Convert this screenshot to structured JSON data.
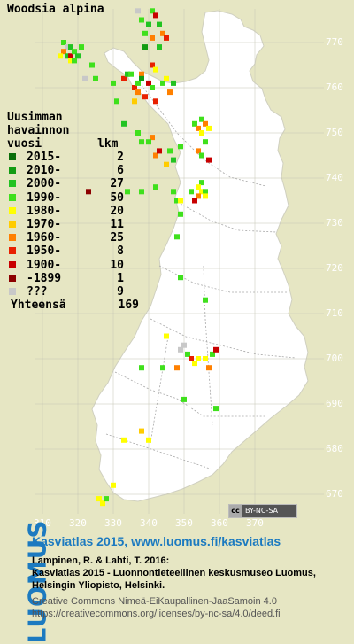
{
  "title": "Woodsia alpina",
  "legend": {
    "heading": [
      "Uusimman",
      "havainnon",
      "vuosi"
    ],
    "count_heading": "lkm",
    "rows": [
      {
        "label": "2015-",
        "count": "2",
        "color": "#0a6e0a"
      },
      {
        "label": "2010-",
        "count": "6",
        "color": "#139c13"
      },
      {
        "label": "2000-",
        "count": "27",
        "color": "#22c322"
      },
      {
        "label": "1990-",
        "count": "50",
        "color": "#3fe01c"
      },
      {
        "label": "1980-",
        "count": "20",
        "color": "#ffff00"
      },
      {
        "label": "1970-",
        "count": "11",
        "color": "#ffcc00"
      },
      {
        "label": "1960-",
        "count": "25",
        "color": "#ff8000"
      },
      {
        "label": "1950-",
        "count": "8",
        "color": "#e82000"
      },
      {
        "label": "1900-",
        "count": "10",
        "color": "#c80000"
      },
      {
        "label": "-1899",
        "count": "1",
        "color": "#8c0000"
      },
      {
        "label": "???",
        "count": "9",
        "color": "#c8c8c8"
      }
    ],
    "total_label": "Yhteensä",
    "total_count": "169"
  },
  "grid": {
    "y_labels": [
      "770",
      "760",
      "750",
      "740",
      "730",
      "720",
      "710",
      "700",
      "690",
      "680",
      "670"
    ],
    "x_labels": [
      "310",
      "320",
      "330",
      "340",
      "350",
      "360",
      "370"
    ]
  },
  "license_badge": "BY-NC-SA",
  "footer": {
    "logo": "LUOMUS",
    "title_line": "Kasviatlas 2015, www.luomus.fi/kasviatlas",
    "citation_1": "Lampinen, R. & Lahti, T. 2016:",
    "citation_2": "Kasviatlas 2015 - Luonnontieteellinen keskusmuseo Luomus,",
    "citation_3": "Helsingin Yliopisto, Helsinki.",
    "license_1": "Creative Commons Nimeä-EiKaupallinen-JaaSamoin 4.0",
    "license_2": "https://creativecommons.org/licenses/by-nc-sa/4.0/deed.fi"
  },
  "observations": [
    {
      "e": 337,
      "n": 777,
      "p": 10
    },
    {
      "e": 341,
      "n": 777,
      "p": 3
    },
    {
      "e": 342,
      "n": 776,
      "p": 8
    },
    {
      "e": 338,
      "n": 775,
      "p": 3
    },
    {
      "e": 340,
      "n": 774,
      "p": 2
    },
    {
      "e": 343,
      "n": 774,
      "p": 2
    },
    {
      "e": 339,
      "n": 772,
      "p": 3
    },
    {
      "e": 341,
      "n": 771,
      "p": 6
    },
    {
      "e": 344,
      "n": 772,
      "p": 6
    },
    {
      "e": 345,
      "n": 771,
      "p": 7
    },
    {
      "e": 339,
      "n": 769,
      "p": 1
    },
    {
      "e": 343,
      "n": 769,
      "p": 2
    },
    {
      "e": 341,
      "n": 765,
      "p": 7
    },
    {
      "e": 340,
      "n": 761,
      "p": 8
    },
    {
      "e": 338,
      "n": 763,
      "p": 6
    },
    {
      "e": 339,
      "n": 758,
      "p": 7
    },
    {
      "e": 342,
      "n": 764,
      "p": 4
    },
    {
      "e": 316,
      "n": 770,
      "p": 3
    },
    {
      "e": 317,
      "n": 769,
      "p": 10
    },
    {
      "e": 318,
      "n": 769,
      "p": 2
    },
    {
      "e": 316,
      "n": 768,
      "p": 6
    },
    {
      "e": 317,
      "n": 767,
      "p": 2
    },
    {
      "e": 318,
      "n": 767,
      "p": 8
    },
    {
      "e": 319,
      "n": 768,
      "p": 3
    },
    {
      "e": 320,
      "n": 767,
      "p": 2
    },
    {
      "e": 318,
      "n": 766,
      "p": 4
    },
    {
      "e": 319,
      "n": 766,
      "p": 3
    },
    {
      "e": 321,
      "n": 769,
      "p": 3
    },
    {
      "e": 315,
      "n": 767,
      "p": 4
    },
    {
      "e": 322,
      "n": 762,
      "p": 10
    },
    {
      "e": 324,
      "n": 765,
      "p": 3
    },
    {
      "e": 325,
      "n": 762,
      "p": 3
    },
    {
      "e": 330,
      "n": 761,
      "p": 3
    },
    {
      "e": 333,
      "n": 762,
      "p": 7
    },
    {
      "e": 334,
      "n": 763,
      "p": 2
    },
    {
      "e": 335,
      "n": 763,
      "p": 3
    },
    {
      "e": 336,
      "n": 760,
      "p": 7
    },
    {
      "e": 337,
      "n": 761,
      "p": 3
    },
    {
      "e": 338,
      "n": 762,
      "p": 1
    },
    {
      "e": 337,
      "n": 759,
      "p": 6
    },
    {
      "e": 341,
      "n": 760,
      "p": 3
    },
    {
      "e": 344,
      "n": 761,
      "p": 3
    },
    {
      "e": 345,
      "n": 762,
      "p": 4
    },
    {
      "e": 347,
      "n": 761,
      "p": 2
    },
    {
      "e": 346,
      "n": 759,
      "p": 6
    },
    {
      "e": 331,
      "n": 757,
      "p": 3
    },
    {
      "e": 336,
      "n": 757,
      "p": 5
    },
    {
      "e": 342,
      "n": 757,
      "p": 7
    },
    {
      "e": 333,
      "n": 752,
      "p": 2
    },
    {
      "e": 337,
      "n": 750,
      "p": 3
    },
    {
      "e": 338,
      "n": 748,
      "p": 3
    },
    {
      "e": 341,
      "n": 749,
      "p": 6
    },
    {
      "e": 340,
      "n": 748,
      "p": 3
    },
    {
      "e": 346,
      "n": 746,
      "p": 3
    },
    {
      "e": 349,
      "n": 747,
      "p": 3
    },
    {
      "e": 342,
      "n": 745,
      "p": 6
    },
    {
      "e": 343,
      "n": 746,
      "p": 8
    },
    {
      "e": 345,
      "n": 743,
      "p": 5
    },
    {
      "e": 347,
      "n": 744,
      "p": 2
    },
    {
      "e": 353,
      "n": 752,
      "p": 3
    },
    {
      "e": 354,
      "n": 751,
      "p": 6
    },
    {
      "e": 355,
      "n": 753,
      "p": 3
    },
    {
      "e": 356,
      "n": 752,
      "p": 6
    },
    {
      "e": 355,
      "n": 750,
      "p": 4
    },
    {
      "e": 357,
      "n": 751,
      "p": 4
    },
    {
      "e": 356,
      "n": 748,
      "p": 3
    },
    {
      "e": 354,
      "n": 746,
      "p": 6
    },
    {
      "e": 355,
      "n": 745,
      "p": 3
    },
    {
      "e": 357,
      "n": 744,
      "p": 8
    },
    {
      "e": 355,
      "n": 739,
      "p": 3
    },
    {
      "e": 354,
      "n": 738,
      "p": 4
    },
    {
      "e": 355,
      "n": 737,
      "p": 4
    },
    {
      "e": 356,
      "n": 737,
      "p": 3
    },
    {
      "e": 354,
      "n": 736,
      "p": 6
    },
    {
      "e": 356,
      "n": 736,
      "p": 4
    },
    {
      "e": 353,
      "n": 735,
      "p": 8
    },
    {
      "e": 352,
      "n": 737,
      "p": 3
    },
    {
      "e": 347,
      "n": 737,
      "p": 3
    },
    {
      "e": 348,
      "n": 735,
      "p": 3
    },
    {
      "e": 349,
      "n": 732,
      "p": 3
    },
    {
      "e": 349,
      "n": 735,
      "p": 4
    },
    {
      "e": 323,
      "n": 737,
      "p": 9
    },
    {
      "e": 334,
      "n": 737,
      "p": 3
    },
    {
      "e": 338,
      "n": 737,
      "p": 3
    },
    {
      "e": 342,
      "n": 738,
      "p": 3
    },
    {
      "e": 348,
      "n": 727,
      "p": 3
    },
    {
      "e": 349,
      "n": 718,
      "p": 3
    },
    {
      "e": 356,
      "n": 713,
      "p": 3
    },
    {
      "e": 345,
      "n": 705,
      "p": 4
    },
    {
      "e": 349,
      "n": 702,
      "p": 10
    },
    {
      "e": 350,
      "n": 703,
      "p": 10
    },
    {
      "e": 351,
      "n": 701,
      "p": 3
    },
    {
      "e": 352,
      "n": 700,
      "p": 7
    },
    {
      "e": 354,
      "n": 700,
      "p": 4
    },
    {
      "e": 356,
      "n": 700,
      "p": 4
    },
    {
      "e": 358,
      "n": 701,
      "p": 3
    },
    {
      "e": 359,
      "n": 702,
      "p": 8
    },
    {
      "e": 353,
      "n": 699,
      "p": 4
    },
    {
      "e": 357,
      "n": 698,
      "p": 6
    },
    {
      "e": 348,
      "n": 698,
      "p": 6
    },
    {
      "e": 344,
      "n": 698,
      "p": 3
    },
    {
      "e": 359,
      "n": 689,
      "p": 3
    },
    {
      "e": 338,
      "n": 698,
      "p": 3
    },
    {
      "e": 333,
      "n": 682,
      "p": 4
    },
    {
      "e": 338,
      "n": 684,
      "p": 5
    },
    {
      "e": 340,
      "n": 682,
      "p": 4
    },
    {
      "e": 350,
      "n": 691,
      "p": 3
    },
    {
      "e": 326,
      "n": 669,
      "p": 4
    },
    {
      "e": 327,
      "n": 668,
      "p": 4
    },
    {
      "e": 328,
      "n": 669,
      "p": 3
    },
    {
      "e": 330,
      "n": 672,
      "p": 4
    }
  ]
}
